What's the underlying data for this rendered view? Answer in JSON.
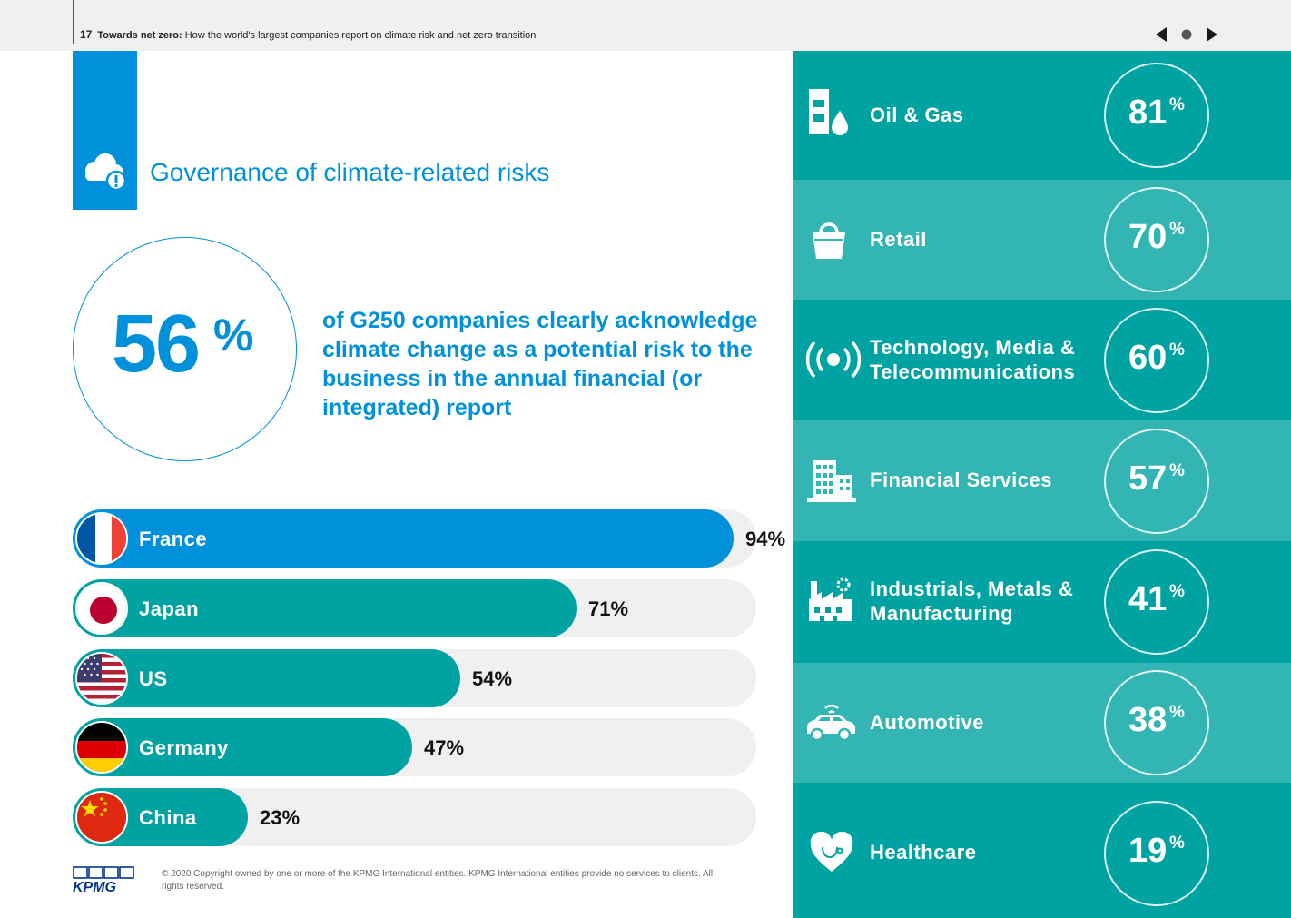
{
  "header": {
    "page_number": "17",
    "doc_title": "Towards net zero:",
    "doc_subtitle": " How the world's largest companies report on climate risk and net zero transition"
  },
  "section": {
    "title": "Governance of climate-related risks",
    "icon": "cloud-risk-icon"
  },
  "stat": {
    "value": "56",
    "unit": "%",
    "description": "of G250 companies clearly acknowledge climate change as a potential risk to the business in the annual financial (or integrated) report"
  },
  "countries": [
    {
      "name": "France",
      "value": 94,
      "label": "94%",
      "color": "#0091da"
    },
    {
      "name": "Japan",
      "value": 71,
      "label": "71%",
      "color": "#00a3a1"
    },
    {
      "name": "US",
      "value": 54,
      "label": "54%",
      "color": "#00a3a1"
    },
    {
      "name": "Germany",
      "value": 47,
      "label": "47%",
      "color": "#00a3a1"
    },
    {
      "name": "China",
      "value": 23,
      "label": "23%",
      "color": "#00a3a1"
    }
  ],
  "sectors": [
    {
      "name": "Oil & Gas",
      "value": "81",
      "unit": "%",
      "icon": "oil-gas-icon",
      "bg": "#00a3a1"
    },
    {
      "name": "Retail",
      "value": "70",
      "unit": "%",
      "icon": "shopping-bag-icon",
      "bg": "#33b5b3"
    },
    {
      "name": "Technology, Media & Telecommunications",
      "value": "60",
      "unit": "%",
      "icon": "broadcast-icon",
      "bg": "#00a3a1"
    },
    {
      "name": "Financial Services",
      "value": "57",
      "unit": "%",
      "icon": "office-building-icon",
      "bg": "#33b5b3"
    },
    {
      "name": "Industrials, Metals & Manufacturing",
      "value": "41",
      "unit": "%",
      "icon": "factory-icon",
      "bg": "#00a3a1"
    },
    {
      "name": "Automotive",
      "value": "38",
      "unit": "%",
      "icon": "car-icon",
      "bg": "#33b5b3"
    },
    {
      "name": "Healthcare",
      "value": "19",
      "unit": "%",
      "icon": "heart-icon",
      "bg": "#00a3a1"
    }
  ],
  "footer": {
    "logo": "KPMG",
    "copyright": "© 2020 Copyright owned by one or more of the KPMG International entities. KPMG International entities provide no services to clients.  All rights reserved."
  },
  "colors": {
    "kpmg_blue": "#0091da",
    "teal": "#00a3a1",
    "teal_light": "#33b5b3",
    "track": "#f0f0f0",
    "logo_blue": "#00338d"
  }
}
